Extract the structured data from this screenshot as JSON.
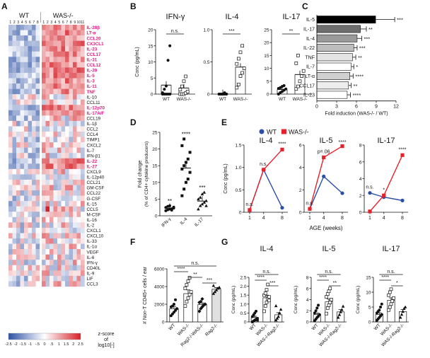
{
  "colors": {
    "wt": "#2b4fa8",
    "was": "#e8202a",
    "black": "#111111",
    "magenta": "#e0197d"
  },
  "panel_letters": [
    "A",
    "B",
    "C",
    "D",
    "E",
    "F",
    "G"
  ],
  "chart_data": [
    {
      "panel": "A",
      "type": "heatmap",
      "groups": [
        {
          "name": "WT",
          "samples": [
            "1",
            "2",
            "3",
            "4",
            "5",
            "6",
            "7",
            "8"
          ]
        },
        {
          "name": "WAS-/-",
          "samples": [
            "1",
            "2",
            "3",
            "4",
            "5",
            "6",
            "7",
            "8",
            "9",
            "10",
            "11"
          ]
        }
      ],
      "rows": [
        "IL-28β",
        "LT-α",
        "CCL20",
        "CX3CL1",
        "IL-23",
        "CCL17",
        "IL-31",
        "CCL12",
        "IL-20",
        "IL-5",
        "IL-3",
        "IL-11",
        "TNF",
        "IL-10",
        "CCL11",
        "IL-12p70",
        "IL-17A/F",
        "CCL19",
        "IL-1β",
        "CCL2",
        "CCL4",
        "TIMP1",
        "CXCL2",
        "IL-7",
        "IFN-β1",
        "IL-22",
        "IL-27",
        "CXCL9",
        "IL-12p40",
        "CCL21",
        "GM-CSF",
        "CCL22",
        "G-CSF",
        "IL-15",
        "CCL5",
        "M-CSF",
        "IL-16",
        "IL-2",
        "CXCL1",
        "CXCL10",
        "IL-33",
        "IL-1α",
        "VEGF",
        "IL-6",
        "IFN-γ",
        "CD40L",
        "IL-9",
        "LIF",
        "CCL3"
      ],
      "highlighted_rows": [
        "IL-28β",
        "LT-α",
        "CCL20",
        "CX3CL1",
        "IL-23",
        "CCL17",
        "IL-31",
        "CCL12",
        "IL-20",
        "IL-5",
        "IL-3",
        "IL-11",
        "TNF",
        "IL-12p70",
        "IL-17A/F",
        "IL-22",
        "IL-27"
      ],
      "colorbar": {
        "ticks": [
          "-2.5",
          "-2",
          "-1.5",
          "-1",
          "-.5",
          "0",
          ".5",
          "1",
          "1.5",
          "2",
          "2.5"
        ],
        "label": [
          "z-score",
          "of",
          "log10[-]"
        ],
        "range": [
          -2.5,
          2.5
        ]
      }
    },
    {
      "panel": "B",
      "type": "scatter",
      "ylabel": "Conc (pg/mL)",
      "subplots": [
        {
          "title": "IFN-γ",
          "ylim": [
            0,
            20
          ],
          "yticks": [
            "0",
            "5",
            "10",
            "15",
            "20"
          ],
          "categories": [
            "WT",
            "WAS-/-"
          ],
          "means": [
            2.8,
            1.9
          ],
          "sig": "n.s.",
          "points": [
            [
              0,
              0,
              0,
              0,
              0,
              0.4,
              1.5,
              2.5,
              10.5,
              15
            ],
            [
              0,
              0,
              0,
              0.3,
              0.8,
              1.4,
              2.4,
              4,
              5.5
            ]
          ]
        },
        {
          "title": "IL-4",
          "ylim": [
            0,
            1.0
          ],
          "yticks": [
            "0",
            "0.5",
            "1.0"
          ],
          "categories": [
            "WT",
            "WAS-/-"
          ],
          "means": [
            0.01,
            0.42
          ],
          "sig": "***",
          "points": [
            [
              0,
              0,
              0,
              0,
              0,
              0,
              0,
              0,
              0.02
            ],
            [
              0.1,
              0.15,
              0.28,
              0.33,
              0.4,
              0.47,
              0.55,
              0.65,
              0.75
            ]
          ]
        },
        {
          "title": "IL-17",
          "ylim": [
            0,
            25
          ],
          "yticks": [
            "0",
            "5",
            "10",
            "15",
            "20",
            "25"
          ],
          "categories": [
            "WT",
            "WAS-/-"
          ],
          "means": [
            1.8,
            7.6
          ],
          "sig": "**",
          "points": [
            [
              0,
              0.6,
              1,
              1.5,
              2,
              2.2,
              2.5,
              3,
              3.3
            ],
            [
              2,
              3,
              5,
              7,
              9,
              12,
              15
            ]
          ]
        }
      ]
    },
    {
      "panel": "C",
      "type": "bar",
      "orientation": "horizontal",
      "categories": [
        "IL-5",
        "IL-17",
        "IL-4",
        "IL-22",
        "TNF",
        "IL-7",
        "LT-α",
        "CCL17",
        "IL-23"
      ],
      "values": [
        8.9,
        6.6,
        6.1,
        5.6,
        5.4,
        5.2,
        5.0,
        4.8,
        4.6
      ],
      "errors": [
        2.9,
        0.9,
        0.7,
        0.5,
        0.5,
        0.4,
        0.5,
        0.4,
        0.5
      ],
      "sig": [
        "***",
        "**",
        "***",
        "***",
        "**",
        "*",
        "****",
        "**",
        "****"
      ],
      "xlim": [
        0,
        12
      ],
      "xticks": [
        "0",
        "3",
        "6",
        "9",
        "12"
      ],
      "xlabel": "Fold induction (WAS-/- / WT)"
    },
    {
      "panel": "D",
      "type": "scatter",
      "ylabel": [
        "Fold change",
        "(% of CD4+ cytokine producers)"
      ],
      "ylim": [
        0,
        25
      ],
      "yticks": [
        "0",
        "5",
        "10",
        "15",
        "20",
        "25"
      ],
      "categories": [
        "IFN-γ",
        "IL-4",
        "IL-17"
      ],
      "means": [
        2.2,
        14.3,
        4.4
      ],
      "sig": [
        "**",
        "****",
        "***"
      ],
      "points": [
        [
          1.5,
          1.8,
          2,
          2.1,
          2.3,
          2.5,
          2.8,
          3,
          1.7,
          2.6
        ],
        [
          6,
          8,
          10,
          11,
          13,
          14,
          15,
          16,
          17,
          19,
          21,
          23
        ],
        [
          2,
          3,
          3.5,
          4,
          4.5,
          5,
          5.5,
          6.5,
          7,
          3
        ]
      ]
    },
    {
      "panel": "E",
      "type": "line",
      "ylabel": "Conc (pg/mL)",
      "xlabel": "AGE (weeks)",
      "legend": [
        "WT",
        "WAS-/-"
      ],
      "x": [
        1,
        4,
        8
      ],
      "xticks": [
        "1",
        "4",
        "8"
      ],
      "subplots": [
        {
          "title": "IL-4",
          "ylim": [
            0,
            1.5
          ],
          "yticks": [
            "0",
            "0.5",
            "1.0",
            "1.5"
          ],
          "series": [
            {
              "name": "WT",
              "values": [
                0.05,
                0.95,
                0.1
              ]
            },
            {
              "name": "WAS-/-",
              "values": [
                0.05,
                0.95,
                1.4
              ]
            }
          ],
          "sig": [
            {
              "x": 1,
              "text": "n.s."
            },
            {
              "x": 4,
              "text": "n.s."
            },
            {
              "x": 8,
              "text": "****"
            }
          ]
        },
        {
          "title": "IL-5",
          "ylim": [
            0,
            6
          ],
          "yticks": [
            "0",
            "2",
            "4",
            "6"
          ],
          "series": [
            {
              "name": "WT",
              "values": [
                0.3,
                3.2,
                1.7
              ]
            },
            {
              "name": "WAS-/-",
              "values": [
                0.3,
                4.9,
                5.9
              ]
            }
          ],
          "sig": [
            {
              "x": 1,
              "text": "n.s."
            },
            {
              "x": 4,
              "text": "p=.06"
            },
            {
              "x": 8,
              "text": "****"
            }
          ]
        },
        {
          "title": "IL-17",
          "ylim": [
            0,
            8
          ],
          "yticks": [
            "0",
            "2",
            "4",
            "6",
            "8"
          ],
          "series": [
            {
              "name": "WT",
              "values": [
                2.3,
                1.8,
                1.4
              ]
            },
            {
              "name": "WAS-/-",
              "values": [
                0.1,
                2.0,
                6.8
              ]
            }
          ],
          "sig": [
            {
              "x": 1,
              "text": "n.s."
            },
            {
              "x": 4,
              "text": "*"
            },
            {
              "x": 8,
              "text": "****"
            }
          ]
        }
      ]
    },
    {
      "panel": "F",
      "type": "bar",
      "ylabel": "# Non-T CD45+ cells / ear",
      "ylim": [
        0,
        6000
      ],
      "yticks": [
        "0",
        "2000",
        "4000",
        "6000"
      ],
      "categories": [
        "WT",
        "WAS-/-",
        "Rag2-/-WAS-/-",
        "Rag2-/-"
      ],
      "values": [
        1500,
        3200,
        1950,
        3700
      ],
      "errors": [
        250,
        420,
        200,
        180
      ],
      "sig": [
        {
          "from": 0,
          "to": 3,
          "text": "n.s."
        },
        {
          "from": 0,
          "to": 1,
          "text": "****"
        },
        {
          "from": 1,
          "to": 2,
          "text": "**"
        },
        {
          "from": 2,
          "to": 3,
          "text": "***"
        }
      ],
      "points": [
        [
          700,
          900,
          1100,
          1300,
          1500,
          1700,
          1800,
          2000,
          2500
        ],
        [
          1800,
          2300,
          2700,
          3100,
          3400,
          3800,
          4200,
          4600,
          5000
        ],
        [
          1200,
          1500,
          1700,
          1900,
          2000,
          2200,
          2300,
          2600
        ],
        [
          3200,
          3400,
          3600,
          3800,
          3900,
          4100
        ]
      ]
    },
    {
      "panel": "G",
      "type": "bar",
      "ylabel": "Conc (pg/mL)",
      "categories": [
        "WT",
        "WAS-/-",
        "WAS-/-Rag2-/-"
      ],
      "subplots": [
        {
          "title": "IL-4",
          "ylim": [
            0,
            2.5
          ],
          "yticks": [
            "0",
            "0.5",
            "1.0",
            "1.5",
            "2.0",
            "2.5"
          ],
          "values": [
            0.25,
            1.35,
            0.4
          ],
          "errors": [
            0.07,
            0.15,
            0.12
          ],
          "sig": [
            {
              "from": 0,
              "to": 2,
              "text": "n.s."
            },
            {
              "from": 0,
              "to": 1,
              "text": "****"
            },
            {
              "from": 1,
              "to": 2,
              "text": "***"
            }
          ],
          "points": [
            [
              0,
              0.05,
              0.1,
              0.15,
              0.2,
              0.3,
              0.4,
              0.5,
              0.6,
              0.1
            ],
            [
              0.6,
              0.9,
              1.1,
              1.3,
              1.4,
              1.5,
              1.6,
              1.8,
              2.1,
              1.2
            ],
            [
              0.1,
              0.2,
              0.3,
              0.5,
              0.7,
              0.9
            ]
          ]
        },
        {
          "title": "IL-5",
          "ylim": [
            0,
            8
          ],
          "yticks": [
            "0",
            "2",
            "4",
            "6",
            "8"
          ],
          "values": [
            1.3,
            3.6,
            1.8
          ],
          "errors": [
            0.3,
            0.5,
            0.4
          ],
          "sig": [
            {
              "from": 0,
              "to": 2,
              "text": "n.s."
            },
            {
              "from": 0,
              "to": 1,
              "text": "****"
            },
            {
              "from": 1,
              "to": 2,
              "text": "**"
            }
          ],
          "points": [
            [
              0.2,
              0.5,
              0.8,
              1,
              1.3,
              1.6,
              2,
              2.5,
              3
            ],
            [
              1.5,
              2.5,
              3,
              3.5,
              4,
              4.5,
              5,
              5.5,
              6
            ],
            [
              0.8,
              1.3,
              1.8,
              2.2,
              2.8
            ]
          ]
        },
        {
          "title": "IL-17",
          "ylim": [
            0,
            15
          ],
          "yticks": [
            "0",
            "5",
            "10",
            "15"
          ],
          "values": [
            2.5,
            7.3,
            3.5
          ],
          "errors": [
            0.6,
            0.8,
            0.7
          ],
          "sig": [
            {
              "from": 0,
              "to": 2,
              "text": "n.s."
            },
            {
              "from": 0,
              "to": 1,
              "text": "****"
            },
            {
              "from": 1,
              "to": 2,
              "text": "*"
            }
          ],
          "points": [
            [
              0.5,
              1,
              1.5,
              2,
              2.5,
              3,
              3.5,
              4,
              5,
              6
            ],
            [
              4,
              5,
              6,
              7,
              8,
              9,
              10,
              11
            ],
            [
              1.5,
              2.5,
              3.5,
              4.5,
              5
            ]
          ]
        }
      ]
    }
  ]
}
